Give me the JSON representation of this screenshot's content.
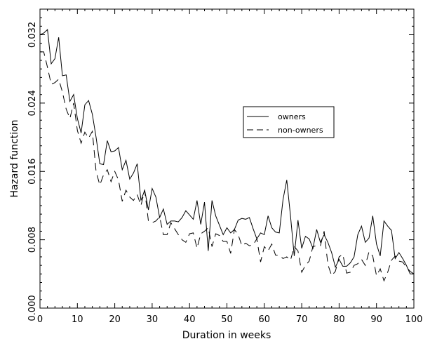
{
  "chart_data": {
    "type": "line",
    "title": "",
    "xlabel": "Duration in weeks",
    "ylabel": "Hazard function",
    "xlim": [
      0,
      100
    ],
    "ylim": [
      0,
      0.035
    ],
    "x_ticks": [
      0,
      10,
      20,
      30,
      40,
      50,
      60,
      70,
      80,
      90,
      100
    ],
    "x_tick_labels": [
      "0",
      "10",
      "20",
      "30",
      "40",
      "50",
      "60",
      "70",
      "80",
      "90",
      "100"
    ],
    "y_ticks": [
      0,
      0.008,
      0.016,
      0.024,
      0.032
    ],
    "y_tick_labels": [
      "0.000",
      "0.008",
      "0.016",
      "0.024",
      "0.032"
    ],
    "grid": false,
    "legend_position": "right-center",
    "x": [
      0,
      1,
      2,
      3,
      4,
      5,
      6,
      7,
      8,
      9,
      10,
      11,
      12,
      13,
      14,
      15,
      16,
      17,
      18,
      19,
      20,
      21,
      22,
      23,
      24,
      25,
      26,
      27,
      28,
      29,
      30,
      31,
      32,
      33,
      34,
      35,
      36,
      37,
      38,
      39,
      40,
      41,
      42,
      43,
      44,
      45,
      46,
      47,
      48,
      49,
      50,
      51,
      52,
      53,
      54,
      55,
      56,
      57,
      58,
      59,
      60,
      61,
      62,
      63,
      64,
      65,
      66,
      67,
      68,
      69,
      70,
      71,
      72,
      73,
      74,
      75,
      76,
      77,
      78,
      79,
      80,
      81,
      82,
      83,
      84,
      85,
      86,
      87,
      88,
      89,
      90,
      91,
      92,
      93,
      94,
      95,
      96,
      97,
      98,
      99,
      100
    ],
    "series": [
      {
        "name": "owners",
        "style": "solid",
        "values": [
          0.032,
          0.0322,
          0.0326,
          0.0286,
          0.0292,
          0.0317,
          0.0272,
          0.0273,
          0.0242,
          0.025,
          0.0222,
          0.0205,
          0.0238,
          0.0243,
          0.0227,
          0.02,
          0.0169,
          0.0168,
          0.0196,
          0.0183,
          0.0184,
          0.0188,
          0.0162,
          0.0173,
          0.0151,
          0.0158,
          0.0169,
          0.0126,
          0.0138,
          0.0115,
          0.014,
          0.013,
          0.0106,
          0.0116,
          0.0098,
          0.0102,
          0.0102,
          0.0101,
          0.0106,
          0.0114,
          0.0109,
          0.0104,
          0.0126,
          0.0098,
          0.0124,
          0.0067,
          0.0126,
          0.0108,
          0.0097,
          0.0086,
          0.0094,
          0.0088,
          0.0092,
          0.0103,
          0.0105,
          0.0104,
          0.0106,
          0.0093,
          0.0081,
          0.0088,
          0.0086,
          0.0108,
          0.0094,
          0.0089,
          0.0088,
          0.0127,
          0.015,
          0.0108,
          0.0061,
          0.0103,
          0.007,
          0.0084,
          0.0081,
          0.007,
          0.0092,
          0.0077,
          0.0086,
          0.0077,
          0.0065,
          0.0048,
          0.0057,
          0.0049,
          0.0049,
          0.0053,
          0.006,
          0.0086,
          0.0096,
          0.0077,
          0.0082,
          0.0108,
          0.0075,
          0.0061,
          0.0102,
          0.0096,
          0.0091,
          0.0058,
          0.0065,
          0.0058,
          0.005,
          0.004,
          0.004
        ]
      },
      {
        "name": "non-owners",
        "style": "dashed",
        "values": [
          0.03,
          0.03,
          0.0282,
          0.0262,
          0.0264,
          0.0268,
          0.0253,
          0.0233,
          0.0222,
          0.024,
          0.0208,
          0.0193,
          0.0206,
          0.0199,
          0.0207,
          0.016,
          0.0144,
          0.0156,
          0.0162,
          0.0148,
          0.016,
          0.015,
          0.0125,
          0.0138,
          0.013,
          0.0126,
          0.0133,
          0.012,
          0.0138,
          0.0102,
          0.01,
          0.0102,
          0.0107,
          0.0086,
          0.0086,
          0.01,
          0.0093,
          0.0086,
          0.008,
          0.0077,
          0.0087,
          0.0088,
          0.007,
          0.0087,
          0.009,
          0.0094,
          0.0072,
          0.0087,
          0.0085,
          0.0078,
          0.0078,
          0.0064,
          0.0092,
          0.0086,
          0.0073,
          0.0076,
          0.0073,
          0.0074,
          0.0081,
          0.0054,
          0.0072,
          0.0067,
          0.0075,
          0.0062,
          0.0062,
          0.0058,
          0.006,
          0.0056,
          0.0072,
          0.0067,
          0.0042,
          0.005,
          0.0055,
          0.0072,
          0.0073,
          0.0073,
          0.009,
          0.0051,
          0.0038,
          0.0043,
          0.006,
          0.0063,
          0.0041,
          0.0042,
          0.005,
          0.0052,
          0.0057,
          0.005,
          0.0066,
          0.0061,
          0.0038,
          0.0046,
          0.0032,
          0.0042,
          0.0056,
          0.0061,
          0.0055,
          0.0054,
          0.0048,
          0.0043,
          0.004
        ]
      }
    ]
  }
}
